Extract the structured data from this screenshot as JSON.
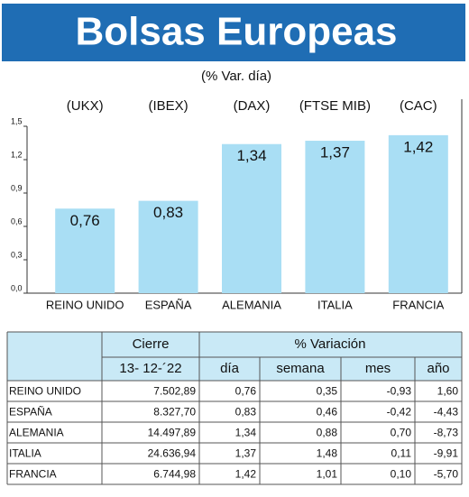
{
  "chart_data": {
    "type": "bar",
    "title": "Bolsas Europeas",
    "subtitle": "(% Var. día)",
    "categories": [
      "REINO UNIDO",
      "ESPAÑA",
      "ALEMANIA",
      "ITALIA",
      "FRANCIA"
    ],
    "tickers": [
      "(UKX)",
      "(IBEX)",
      "(DAX)",
      "(FTSE MIB)",
      "(CAC)"
    ],
    "values": [
      0.76,
      0.83,
      1.34,
      1.37,
      1.42
    ],
    "value_labels": [
      "0,76",
      "0,83",
      "1,34",
      "1,37",
      "1,42"
    ],
    "color": "#a9def4",
    "title_color": "#1f6db4",
    "ylim": [
      0,
      1.5
    ],
    "yticks": [
      {
        "value": 0,
        "label": "0,0"
      },
      {
        "value": 0.3,
        "label": "0,3"
      },
      {
        "value": 0.6,
        "label": "0,6"
      },
      {
        "value": 0.9,
        "label": "0,9"
      },
      {
        "value": 1.2,
        "label": "1,2"
      },
      {
        "value": 1.5,
        "label": "1,5"
      }
    ]
  },
  "table": {
    "header": [
      "Cierre",
      "% Variación"
    ],
    "subheader": [
      "13- 12-´22",
      "día",
      "semana",
      "mes",
      "año"
    ],
    "rows": [
      [
        "REINO UNIDO",
        "7.502,89",
        "0,76",
        "0,35",
        "-0,93",
        "1,60"
      ],
      [
        "ESPAÑA",
        "8.327,70",
        "0,83",
        "0,46",
        "-0,42",
        "-4,43"
      ],
      [
        "ALEMANIA",
        "14.497,89",
        "1,34",
        "0,88",
        "0,70",
        "-8,73"
      ],
      [
        "ITALIA",
        "24.636,94",
        "1,37",
        "1,48",
        "0,11",
        "-9,91"
      ],
      [
        "FRANCIA",
        "6.744,98",
        "1,42",
        "1,01",
        "0,10",
        "-5,70"
      ]
    ]
  }
}
